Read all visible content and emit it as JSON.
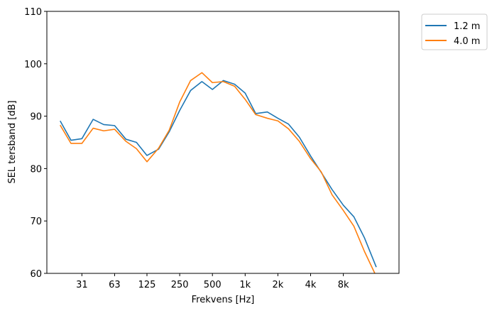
{
  "chart_data": {
    "type": "line",
    "xlabel": "Frekvens [Hz]",
    "ylabel": "SEL tersband [dB]",
    "x_scale": "log",
    "xlim": [
      15.0,
      26000
    ],
    "ylim": [
      60,
      110
    ],
    "x_ticks": [
      {
        "value": 31.5,
        "label": "31"
      },
      {
        "value": 63,
        "label": "63"
      },
      {
        "value": 125,
        "label": "125"
      },
      {
        "value": 250,
        "label": "250"
      },
      {
        "value": 500,
        "label": "500"
      },
      {
        "value": 1000,
        "label": "1k"
      },
      {
        "value": 2000,
        "label": "2k"
      },
      {
        "value": 4000,
        "label": "4k"
      },
      {
        "value": 8000,
        "label": "8k"
      }
    ],
    "y_ticks": [
      60,
      70,
      80,
      90,
      100,
      110
    ],
    "grid": false,
    "legend_position": "outside-top-right",
    "x": [
      20,
      25,
      31.5,
      40,
      50,
      63,
      80,
      100,
      125,
      160,
      200,
      250,
      315,
      400,
      500,
      630,
      800,
      1000,
      1250,
      1600,
      2000,
      2500,
      3150,
      4000,
      5000,
      6300,
      8000,
      10000,
      12500,
      16000
    ],
    "series": [
      {
        "name": "1.2 m",
        "color": "#1f77b4",
        "values": [
          89.0,
          85.4,
          85.7,
          89.4,
          88.4,
          88.2,
          85.6,
          85.0,
          82.5,
          83.7,
          87.0,
          91.1,
          94.9,
          96.6,
          95.1,
          96.8,
          96.1,
          94.4,
          90.5,
          90.8,
          89.6,
          88.5,
          86.0,
          82.4,
          79.3,
          76.0,
          73.0,
          70.8,
          66.8,
          61.3
        ]
      },
      {
        "name": "4.0 m",
        "color": "#ff7f0e",
        "values": [
          88.2,
          84.8,
          84.8,
          87.7,
          87.2,
          87.5,
          85.2,
          83.8,
          81.3,
          83.9,
          87.3,
          92.7,
          96.8,
          98.3,
          96.4,
          96.6,
          95.7,
          93.2,
          90.3,
          89.6,
          89.1,
          87.6,
          85.2,
          81.9,
          79.4,
          75.0,
          72.0,
          69.0,
          64.2,
          59.5
        ]
      }
    ]
  }
}
